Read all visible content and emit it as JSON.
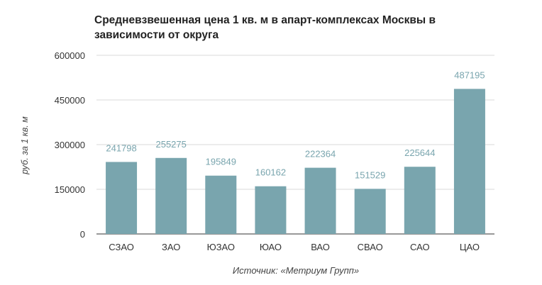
{
  "chart_data": {
    "type": "bar",
    "title": "Средневзвешенная цена 1 кв. м в апарт-комплексах Москвы в зависимости от округа",
    "ylabel": "руб. за 1 кв. м",
    "source": "Источник: «Метриум Групп»",
    "categories": [
      "СЗАО",
      "ЗАО",
      "ЮЗАО",
      "ЮАО",
      "ВАО",
      "СВАО",
      "САО",
      "ЦАО"
    ],
    "values": [
      241798,
      255275,
      195849,
      160162,
      222364,
      151529,
      225644,
      487195
    ],
    "ylim": [
      0,
      600000
    ],
    "yticks": [
      0,
      150000,
      300000,
      450000,
      600000
    ],
    "grid": true,
    "bar_color": "#79a5ae",
    "label_color": "#79a5ae"
  }
}
